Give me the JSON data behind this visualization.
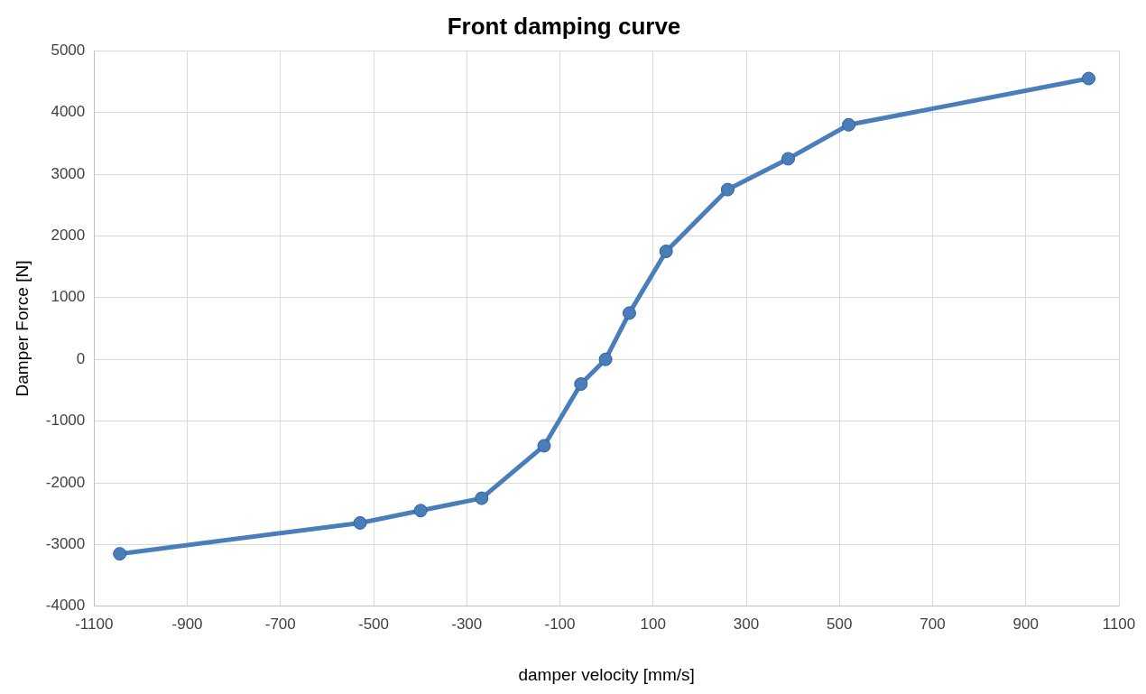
{
  "chart_data": {
    "type": "line",
    "title": "Front damping curve",
    "xlabel": "damper velocity [mm/s]",
    "ylabel": "Damper Force [N]",
    "x": [
      -1045,
      -529,
      -399,
      -268,
      -134,
      -55,
      -2,
      49,
      128,
      260,
      390,
      520,
      1035
    ],
    "series": [
      {
        "color": "#4a7ebb",
        "values": [
          -3150,
          -2650,
          -2450,
          -2250,
          -1400,
          -400,
          0,
          750,
          1750,
          2750,
          3250,
          3800,
          4550
        ]
      }
    ],
    "xlim": [
      -1100,
      1100
    ],
    "xticks": [
      -1100,
      -900,
      -700,
      -500,
      -300,
      -100,
      100,
      300,
      500,
      700,
      900,
      1100
    ],
    "ylim": [
      -4000,
      5000
    ],
    "yticks": [
      -4000,
      -3000,
      -2000,
      -1000,
      0,
      1000,
      2000,
      3000,
      4000,
      5000
    ],
    "grid": true,
    "legend": false,
    "marker": "circle",
    "line_style": "solid"
  }
}
